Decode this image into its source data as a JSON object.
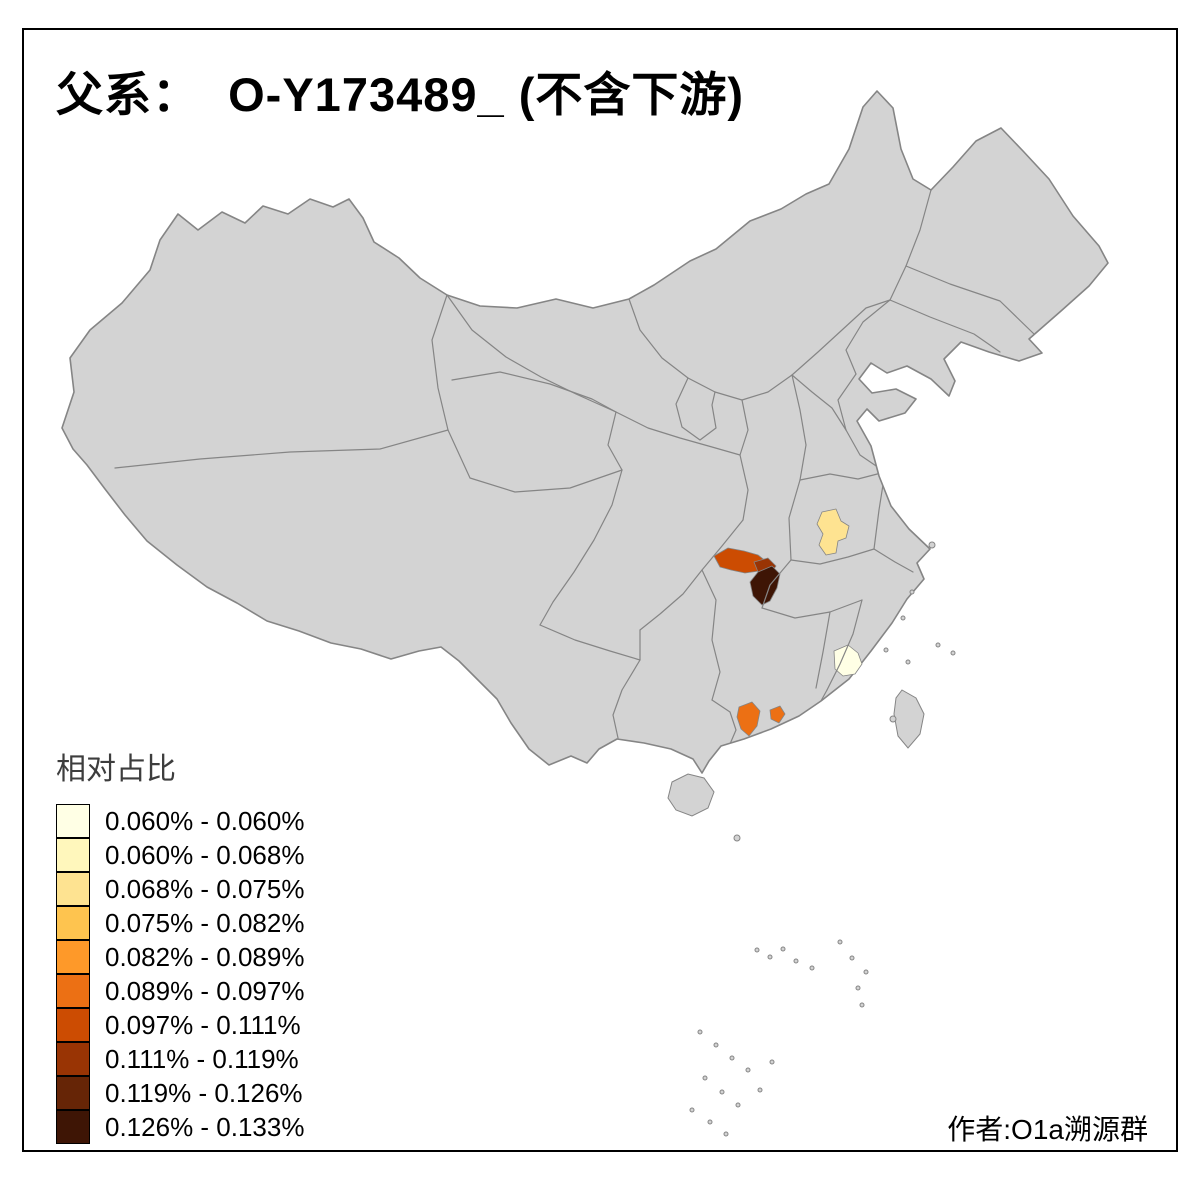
{
  "title": "父系：  O-Y173489_ (不含下游)",
  "legend": {
    "title": "相对占比",
    "items": [
      {
        "label": "0.060% - 0.060%",
        "color": "#FFFFE5"
      },
      {
        "label": "0.060% - 0.068%",
        "color": "#FFF7BC"
      },
      {
        "label": "0.068% - 0.075%",
        "color": "#FEE391"
      },
      {
        "label": "0.075% - 0.082%",
        "color": "#FEC44F"
      },
      {
        "label": "0.082% - 0.089%",
        "color": "#FE9929"
      },
      {
        "label": "0.089% - 0.097%",
        "color": "#EC7014"
      },
      {
        "label": "0.097% - 0.111%",
        "color": "#CC4C02"
      },
      {
        "label": "0.111% - 0.119%",
        "color": "#993404"
      },
      {
        "label": "0.119% - 0.126%",
        "color": "#662506"
      },
      {
        "label": "0.126% - 0.133%",
        "color": "#3E1505"
      }
    ]
  },
  "author": "作者:O1a溯源群",
  "map": {
    "land_color": "#D3D3D3",
    "border_color": "#858585",
    "background": "#FFFFFF",
    "frame_color": "#000000",
    "regions": [
      {
        "name": "central-plain-patch",
        "color": "#FEE391",
        "bin": "0.068% - 0.075%"
      },
      {
        "name": "basin-west-patch",
        "color": "#CC4C02",
        "bin": "0.097% - 0.111%"
      },
      {
        "name": "basin-mid-patch",
        "color": "#993404",
        "bin": "0.111% - 0.119%"
      },
      {
        "name": "basin-dark-patch",
        "color": "#3E1505",
        "bin": "0.126% - 0.133%"
      },
      {
        "name": "southeast-coast-patch",
        "color": "#FFFFE5",
        "bin": "0.060% - 0.060%"
      },
      {
        "name": "south-coast-patch-a",
        "color": "#EC7014",
        "bin": "0.089% - 0.097%"
      },
      {
        "name": "south-coast-patch-b",
        "color": "#EC7014",
        "bin": "0.089% - 0.097%"
      }
    ]
  }
}
